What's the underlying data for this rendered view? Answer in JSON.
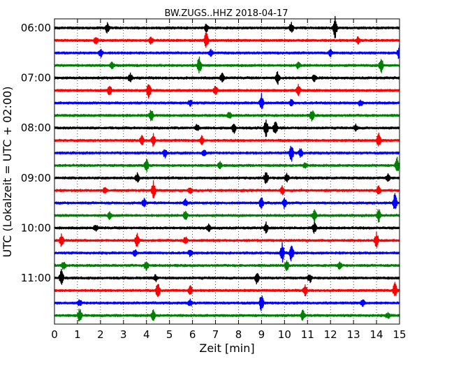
{
  "chart_data": {
    "type": "line",
    "title": "BW.ZUGS..HHZ 2018-04-17",
    "xlabel": "Zeit  [min]",
    "ylabel": "UTC (Lokalzeit = UTC + 02:00)",
    "xlim": [
      0,
      15
    ],
    "x_ticks": [
      "0",
      "1",
      "2",
      "3",
      "4",
      "5",
      "6",
      "7",
      "8",
      "9",
      "10",
      "11",
      "12",
      "13",
      "14",
      "15"
    ],
    "y_ticks": [
      "06:00",
      "07:00",
      "08:00",
      "09:00",
      "10:00",
      "11:00"
    ],
    "grid": {
      "x": true,
      "y": false,
      "style": "dotted"
    },
    "trace_interval_min": 15,
    "series_colors": [
      "#000000",
      "#ff0000",
      "#0000ff",
      "#008000"
    ],
    "traces": [
      {
        "start": "06:00",
        "events": [
          [
            2.3,
            0.5
          ],
          [
            6.6,
            0.4
          ],
          [
            10.3,
            0.5
          ],
          [
            12.2,
            1.0
          ]
        ]
      },
      {
        "start": "06:15",
        "events": [
          [
            1.8,
            0.4
          ],
          [
            4.2,
            0.3
          ],
          [
            6.6,
            0.8
          ],
          [
            13.2,
            0.3
          ]
        ]
      },
      {
        "start": "06:30",
        "events": [
          [
            2.0,
            0.4
          ],
          [
            6.8,
            0.3
          ],
          [
            12.0,
            0.3
          ],
          [
            15.0,
            0.8
          ]
        ]
      },
      {
        "start": "06:45",
        "events": [
          [
            2.5,
            0.3
          ],
          [
            6.3,
            0.8
          ],
          [
            10.6,
            0.3
          ],
          [
            14.2,
            0.7
          ]
        ]
      },
      {
        "start": "07:00",
        "events": [
          [
            3.3,
            0.4
          ],
          [
            7.3,
            0.5
          ],
          [
            9.7,
            0.6
          ],
          [
            11.3,
            0.3
          ]
        ]
      },
      {
        "start": "07:15",
        "events": [
          [
            2.4,
            0.5
          ],
          [
            4.1,
            0.7
          ],
          [
            7.0,
            0.4
          ],
          [
            10.6,
            0.5
          ]
        ]
      },
      {
        "start": "07:30",
        "events": [
          [
            5.9,
            0.3
          ],
          [
            9.0,
            0.8
          ],
          [
            10.3,
            0.3
          ],
          [
            13.3,
            0.3
          ]
        ]
      },
      {
        "start": "07:45",
        "events": [
          [
            4.2,
            0.6
          ],
          [
            7.6,
            0.3
          ],
          [
            11.2,
            0.5
          ]
        ]
      },
      {
        "start": "08:00",
        "events": [
          [
            6.2,
            0.3
          ],
          [
            7.8,
            0.5
          ],
          [
            9.2,
            0.9
          ],
          [
            9.6,
            0.7
          ],
          [
            13.1,
            0.3
          ]
        ]
      },
      {
        "start": "08:15",
        "events": [
          [
            3.8,
            0.4
          ],
          [
            4.3,
            0.6
          ],
          [
            6.4,
            0.4
          ],
          [
            14.1,
            0.6
          ]
        ]
      },
      {
        "start": "08:30",
        "events": [
          [
            4.8,
            0.4
          ],
          [
            6.5,
            0.3
          ],
          [
            10.3,
            0.8
          ],
          [
            10.7,
            0.4
          ]
        ]
      },
      {
        "start": "08:45",
        "events": [
          [
            4.0,
            0.6
          ],
          [
            7.2,
            0.3
          ],
          [
            10.9,
            0.3
          ],
          [
            14.9,
            0.7
          ]
        ]
      },
      {
        "start": "09:00",
        "events": [
          [
            3.6,
            0.4
          ],
          [
            9.2,
            0.6
          ],
          [
            10.1,
            0.4
          ],
          [
            14.5,
            0.3
          ]
        ]
      },
      {
        "start": "09:15",
        "events": [
          [
            2.2,
            0.3
          ],
          [
            4.3,
            0.8
          ],
          [
            5.9,
            0.3
          ],
          [
            9.9,
            0.4
          ],
          [
            14.1,
            0.5
          ]
        ]
      },
      {
        "start": "09:30",
        "events": [
          [
            3.9,
            0.4
          ],
          [
            5.7,
            0.3
          ],
          [
            9.0,
            0.6
          ],
          [
            10.0,
            0.5
          ],
          [
            14.8,
            0.9
          ]
        ]
      },
      {
        "start": "09:45",
        "events": [
          [
            2.4,
            0.3
          ],
          [
            5.7,
            0.5
          ],
          [
            11.3,
            0.5
          ],
          [
            14.1,
            0.6
          ]
        ]
      },
      {
        "start": "10:00",
        "events": [
          [
            1.8,
            0.3
          ],
          [
            6.7,
            0.4
          ],
          [
            9.2,
            0.5
          ],
          [
            11.3,
            0.5
          ]
        ]
      },
      {
        "start": "10:15",
        "events": [
          [
            0.3,
            0.6
          ],
          [
            3.6,
            0.7
          ],
          [
            5.7,
            0.3
          ],
          [
            14.0,
            0.7
          ]
        ]
      },
      {
        "start": "10:30",
        "events": [
          [
            3.5,
            0.3
          ],
          [
            5.9,
            0.3
          ],
          [
            9.9,
            0.9
          ],
          [
            10.3,
            0.8
          ]
        ]
      },
      {
        "start": "10:45",
        "events": [
          [
            0.4,
            0.4
          ],
          [
            4.0,
            0.5
          ],
          [
            10.1,
            0.5
          ],
          [
            12.4,
            0.3
          ]
        ]
      },
      {
        "start": "11:00",
        "events": [
          [
            0.3,
            0.8
          ],
          [
            4.4,
            0.3
          ],
          [
            8.8,
            0.5
          ],
          [
            11.1,
            0.4
          ]
        ]
      },
      {
        "start": "11:15",
        "events": [
          [
            4.5,
            0.8
          ],
          [
            5.9,
            0.5
          ],
          [
            10.9,
            0.5
          ],
          [
            14.8,
            0.7
          ]
        ]
      },
      {
        "start": "11:30",
        "events": [
          [
            1.1,
            0.3
          ],
          [
            5.9,
            0.3
          ],
          [
            9.0,
            0.8
          ],
          [
            13.4,
            0.3
          ]
        ]
      },
      {
        "start": "11:45",
        "events": [
          [
            1.1,
            0.7
          ],
          [
            4.3,
            0.5
          ],
          [
            10.8,
            0.5
          ],
          [
            14.5,
            0.3
          ]
        ]
      }
    ]
  }
}
